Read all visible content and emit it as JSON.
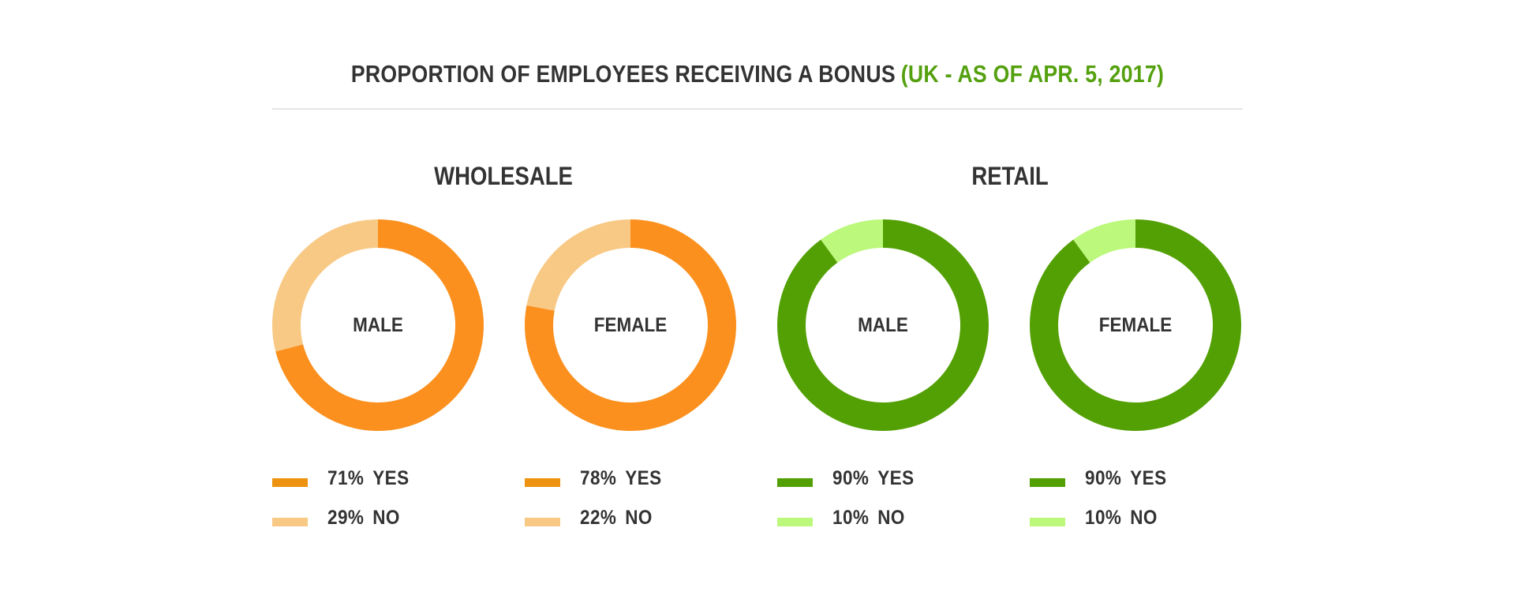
{
  "chart_data": {
    "type": "pie",
    "title": "PROPORTION OF EMPLOYEES RECEIVING A BONUS",
    "subtitle": "(UK - AS OF APR. 5, 2017)",
    "groups": [
      {
        "name": "WHOLESALE",
        "charts": [
          {
            "label": "MALE",
            "slices": [
              {
                "value": 71,
                "pct_label": "71%",
                "label": "YES",
                "color": "#fb901e",
                "legend_color": "#ee9311"
              },
              {
                "value": 29,
                "pct_label": "29%",
                "label": "NO",
                "color": "#f8c985",
                "legend_color": "#f8c985"
              }
            ]
          },
          {
            "label": "FEMALE",
            "slices": [
              {
                "value": 78,
                "pct_label": "78%",
                "label": "YES",
                "color": "#fb901e",
                "legend_color": "#ee9311"
              },
              {
                "value": 22,
                "pct_label": "22%",
                "label": "NO",
                "color": "#f8c985",
                "legend_color": "#f8c985"
              }
            ]
          }
        ]
      },
      {
        "name": "RETAIL",
        "charts": [
          {
            "label": "MALE",
            "slices": [
              {
                "value": 90,
                "pct_label": "90%",
                "label": "YES",
                "color": "#53a004",
                "legend_color": "#53a004"
              },
              {
                "value": 10,
                "pct_label": "10%",
                "label": "NO",
                "color": "#bcf87b",
                "legend_color": "#bcf87b"
              }
            ]
          },
          {
            "label": "FEMALE",
            "slices": [
              {
                "value": 90,
                "pct_label": "90%",
                "label": "YES",
                "color": "#53a004",
                "legend_color": "#53a004"
              },
              {
                "value": 10,
                "pct_label": "10%",
                "label": "NO",
                "color": "#bcf87b",
                "legend_color": "#bcf87b"
              }
            ]
          }
        ]
      }
    ]
  },
  "colors": {
    "text": "#333333",
    "title_accent": "#54a00e",
    "divider": "#e6e6e6"
  }
}
